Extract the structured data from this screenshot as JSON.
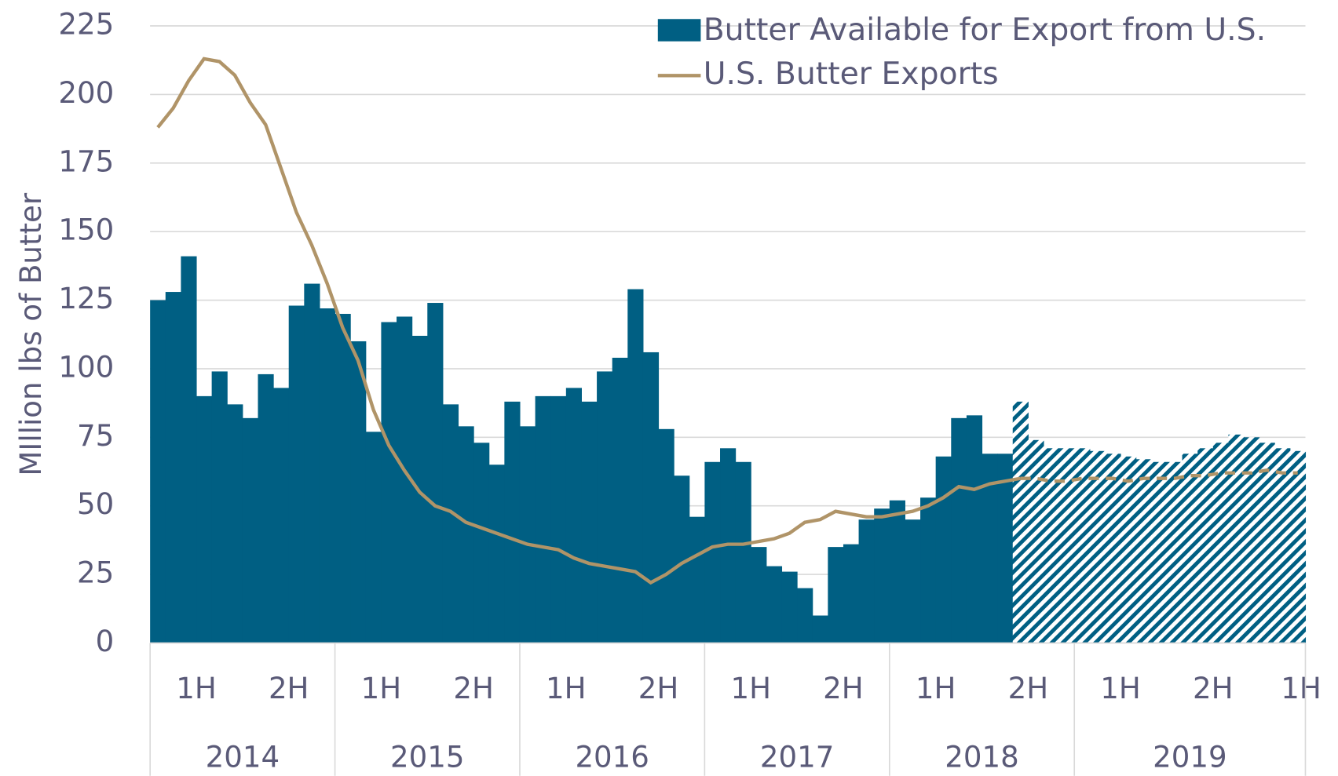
{
  "chart_data": {
    "type": "bar_line",
    "y_label": "MIllion lbs of Butter",
    "ylim": [
      0,
      225
    ],
    "yticks": [
      0,
      25,
      50,
      75,
      100,
      125,
      150,
      175,
      200,
      225
    ],
    "grid": true,
    "legend": "top-right",
    "half_labels": [
      "1H",
      "2H",
      "1H",
      "2H",
      "1H",
      "2H",
      "1H",
      "2H",
      "1H",
      "2H",
      "1H",
      "2H",
      "1H"
    ],
    "years": [
      "2014",
      "2015",
      "2016",
      "2017",
      "2018",
      "2019"
    ],
    "categories": [
      null,
      null,
      null,
      null,
      null,
      null,
      null,
      null,
      null,
      null,
      null,
      null,
      null,
      null,
      null,
      null,
      null,
      null,
      null,
      null,
      null,
      null,
      null,
      null,
      null,
      null,
      null,
      null,
      null,
      null,
      null,
      null,
      null,
      null,
      null,
      null,
      null,
      null,
      null,
      null,
      null,
      null,
      null,
      null,
      null,
      null,
      null,
      null,
      null,
      null,
      null,
      null,
      null,
      null,
      null,
      null,
      null,
      null,
      null,
      null,
      null,
      null,
      null,
      null,
      null,
      null,
      null,
      null,
      null,
      null,
      null,
      null,
      null,
      null,
      null
    ],
    "forecast_from": 56,
    "series": [
      {
        "name": "Butter Available for Export from U.S.",
        "type": "bar",
        "color": "#005f83",
        "values": [
          125,
          128,
          141,
          90,
          99,
          87,
          82,
          98,
          93,
          123,
          131,
          122,
          120,
          110,
          77,
          117,
          119,
          112,
          124,
          87,
          79,
          73,
          65,
          88,
          79,
          90,
          90,
          93,
          88,
          99,
          104,
          129,
          106,
          78,
          61,
          46,
          66,
          71,
          66,
          35,
          28,
          26,
          20,
          10,
          35,
          36,
          45,
          49,
          52,
          45,
          53,
          68,
          82,
          83,
          69,
          69,
          88,
          74,
          71,
          71,
          71,
          70,
          69,
          68,
          67,
          66,
          66,
          69,
          71,
          73,
          76,
          75,
          73,
          71,
          70
        ]
      },
      {
        "name": "U.S. Butter Exports",
        "type": "line",
        "color": "#b09468",
        "values": [
          188,
          195,
          205,
          213,
          212,
          207,
          197,
          189,
          173,
          157,
          145,
          131,
          115,
          103,
          85,
          72,
          63,
          55,
          50,
          48,
          44,
          42,
          40,
          38,
          36,
          35,
          34,
          31,
          29,
          28,
          27,
          26,
          22,
          25,
          29,
          32,
          35,
          36,
          36,
          37,
          38,
          40,
          44,
          45,
          48,
          47,
          46,
          46,
          47,
          48,
          50,
          53,
          57,
          56,
          58,
          59,
          60,
          60,
          59,
          59,
          60,
          60,
          60,
          59,
          60,
          60,
          60,
          61,
          61,
          62,
          62,
          62,
          63,
          62,
          62
        ]
      }
    ]
  }
}
